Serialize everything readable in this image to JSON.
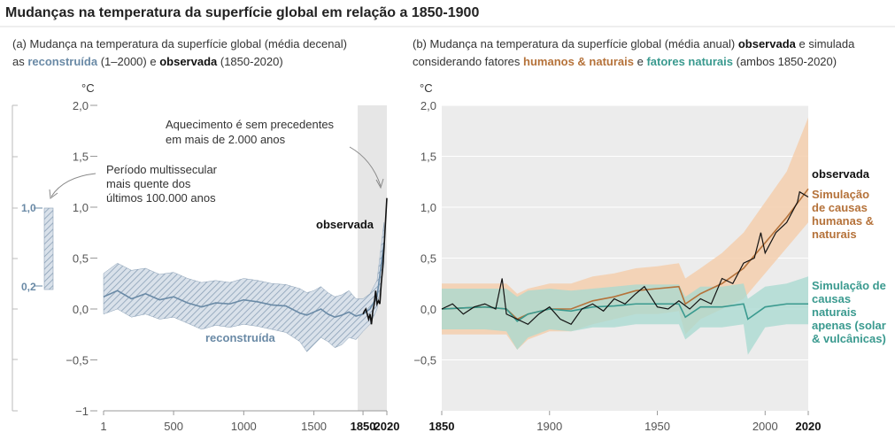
{
  "title": "Mudanças na temperatura da superfície global em relação a 1850-1900",
  "colors": {
    "reconstructed": "#6a8aa6",
    "observed": "#111111",
    "human_natural": "#b5723a",
    "human_natural_band": "#f4cfae",
    "natural": "#3a9a8f",
    "natural_band": "#a7d9d0",
    "panel_bg": "#ececec"
  },
  "panel_a": {
    "caption_line1": "(a) Mudança na temperatura da superfície global (média decenal)",
    "caption_pre": "as ",
    "caption_reconstructed": "reconstruída",
    "caption_mid": " (1–2000) e ",
    "caption_observed": "observada",
    "caption_post": " (1850-2020)",
    "unit": "°C",
    "annotation_warming": [
      "Aquecimento é sem precedentes",
      "em mais de 2.000 anos"
    ],
    "annotation_period": [
      "Período multissecular",
      "mais quente dos",
      "últimos 100.000 anos"
    ],
    "label_observed": "observada",
    "label_reconstructed": "reconstruída",
    "side_bar": {
      "top": "1,0",
      "bottom": "0,2"
    }
  },
  "panel_b": {
    "caption_line1_pre": "(b) Mudança na temperatura da superfície global (média anual) ",
    "caption_observed": "observada",
    "caption_line1_post": " e simulada",
    "caption_line2_pre": "considerando fatores ",
    "caption_human": "humanos & naturais",
    "caption_line2_mid": " e ",
    "caption_natural": "fatores naturais",
    "caption_line2_post": " (ambos 1850-2020)",
    "unit": "°C",
    "label_observed": "observada",
    "label_human": [
      "Simulação",
      "de causas",
      "humanas &",
      "naturais"
    ],
    "label_natural": [
      "Simulação de",
      "causas",
      "naturais",
      "apenas (solar",
      "& vulcânicas)"
    ]
  },
  "chart_data": [
    {
      "type": "line",
      "title": "(a) Mudança na temperatura da superfície global (média decenal)",
      "ylabel": "°C",
      "xlim": [
        1,
        2020
      ],
      "ylim": [
        -1,
        2
      ],
      "y_ticks": [
        "−1",
        "−0,5",
        "0,0",
        "0,5",
        "1,0",
        "1,5",
        "2,0"
      ],
      "x_ticks": [
        "1",
        "500",
        "1000",
        "1500",
        "1850",
        "2020"
      ],
      "shaded_region": [
        1850,
        2020
      ],
      "series": [
        {
          "name": "reconstruída",
          "x": [
            1,
            100,
            200,
            300,
            400,
            500,
            600,
            700,
            800,
            900,
            1000,
            1100,
            1200,
            1300,
            1400,
            1450,
            1500,
            1550,
            1600,
            1650,
            1700,
            1750,
            1800,
            1850,
            1900,
            1950,
            2000
          ],
          "values": [
            0.12,
            0.18,
            0.1,
            0.15,
            0.09,
            0.12,
            0.06,
            0.02,
            0.06,
            0.05,
            0.09,
            0.07,
            0.04,
            0.03,
            -0.04,
            -0.06,
            -0.03,
            0.0,
            -0.05,
            -0.08,
            -0.06,
            -0.03,
            -0.07,
            -0.05,
            0.0,
            0.12,
            0.65
          ],
          "lower": [
            -0.05,
            0.0,
            -0.08,
            -0.05,
            -0.1,
            -0.08,
            -0.14,
            -0.2,
            -0.16,
            -0.18,
            -0.15,
            -0.17,
            -0.2,
            -0.23,
            -0.32,
            -0.42,
            -0.35,
            -0.28,
            -0.32,
            -0.38,
            -0.35,
            -0.28,
            -0.3,
            -0.22,
            -0.15,
            0.0,
            0.45
          ],
          "upper": [
            0.35,
            0.45,
            0.38,
            0.4,
            0.34,
            0.36,
            0.3,
            0.26,
            0.28,
            0.26,
            0.3,
            0.28,
            0.25,
            0.24,
            0.2,
            0.16,
            0.18,
            0.22,
            0.16,
            0.12,
            0.14,
            0.18,
            0.1,
            0.1,
            0.15,
            0.28,
            0.85
          ]
        },
        {
          "name": "observada",
          "x": [
            1850,
            1860,
            1870,
            1880,
            1890,
            1900,
            1910,
            1920,
            1930,
            1940,
            1950,
            1960,
            1970,
            1980,
            1990,
            2000,
            2010,
            2020
          ],
          "values": [
            -0.05,
            -0.02,
            0.0,
            -0.05,
            -0.1,
            -0.05,
            -0.15,
            -0.02,
            0.05,
            0.18,
            0.05,
            0.08,
            0.05,
            0.25,
            0.4,
            0.6,
            0.85,
            1.09
          ]
        }
      ]
    },
    {
      "type": "line",
      "title": "(b) Mudança na temperatura da superfície global (média anual) observada e simulada",
      "ylabel": "°C",
      "xlim": [
        1850,
        2020
      ],
      "ylim": [
        -1,
        2
      ],
      "y_ticks": [
        "−0,5",
        "0,0",
        "0,5",
        "1,0",
        "1,5",
        "2,0"
      ],
      "x_ticks": [
        "1850",
        "1900",
        "1950",
        "2000",
        "2020"
      ],
      "series": [
        {
          "name": "observada",
          "x": [
            1850,
            1855,
            1860,
            1865,
            1870,
            1875,
            1878,
            1880,
            1885,
            1890,
            1895,
            1900,
            1905,
            1910,
            1915,
            1920,
            1925,
            1930,
            1935,
            1940,
            1944,
            1950,
            1955,
            1960,
            1965,
            1970,
            1975,
            1980,
            1985,
            1990,
            1995,
            1998,
            2000,
            2005,
            2010,
            2015,
            2016,
            2020
          ],
          "values": [
            0.0,
            0.05,
            -0.05,
            0.02,
            0.05,
            0.0,
            0.3,
            -0.05,
            -0.1,
            -0.15,
            -0.05,
            0.02,
            -0.1,
            -0.15,
            0.0,
            0.05,
            -0.02,
            0.1,
            0.05,
            0.15,
            0.22,
            0.02,
            0.0,
            0.08,
            0.0,
            0.1,
            0.05,
            0.3,
            0.25,
            0.45,
            0.5,
            0.75,
            0.55,
            0.75,
            0.85,
            1.05,
            1.15,
            1.1
          ]
        },
        {
          "name": "Simulação de causas humanas & naturais",
          "x": [
            1850,
            1870,
            1880,
            1885,
            1890,
            1900,
            1910,
            1920,
            1930,
            1940,
            1950,
            1960,
            1963,
            1970,
            1980,
            1990,
            2000,
            2010,
            2020
          ],
          "values": [
            0.0,
            0.02,
            0.0,
            -0.1,
            -0.05,
            0.0,
            0.0,
            0.08,
            0.12,
            0.18,
            0.2,
            0.22,
            0.05,
            0.15,
            0.25,
            0.4,
            0.65,
            0.9,
            1.18
          ],
          "lower": [
            -0.25,
            -0.25,
            -0.25,
            -0.4,
            -0.3,
            -0.22,
            -0.22,
            -0.15,
            -0.1,
            -0.05,
            -0.05,
            -0.02,
            -0.25,
            -0.1,
            0.0,
            0.1,
            0.35,
            0.6,
            0.85
          ],
          "upper": [
            0.25,
            0.25,
            0.25,
            0.15,
            0.2,
            0.25,
            0.25,
            0.32,
            0.35,
            0.4,
            0.42,
            0.45,
            0.3,
            0.4,
            0.55,
            0.75,
            1.05,
            1.35,
            1.88
          ]
        },
        {
          "name": "Simulação de causas naturais apenas (solar & vulcânicas)",
          "x": [
            1850,
            1870,
            1880,
            1885,
            1890,
            1900,
            1910,
            1920,
            1930,
            1940,
            1950,
            1960,
            1963,
            1970,
            1980,
            1990,
            1992,
            2000,
            2010,
            2020
          ],
          "values": [
            0.0,
            0.02,
            0.0,
            -0.12,
            -0.05,
            0.0,
            -0.02,
            0.02,
            0.03,
            0.05,
            0.05,
            0.05,
            -0.08,
            0.02,
            0.02,
            0.05,
            -0.1,
            0.02,
            0.05,
            0.05
          ],
          "lower": [
            -0.2,
            -0.2,
            -0.22,
            -0.4,
            -0.28,
            -0.2,
            -0.22,
            -0.18,
            -0.18,
            -0.15,
            -0.15,
            -0.15,
            -0.3,
            -0.18,
            -0.18,
            -0.15,
            -0.45,
            -0.18,
            -0.15,
            -0.15
          ],
          "upper": [
            0.2,
            0.2,
            0.2,
            0.12,
            0.18,
            0.2,
            0.18,
            0.2,
            0.22,
            0.24,
            0.24,
            0.24,
            0.12,
            0.22,
            0.22,
            0.25,
            0.1,
            0.22,
            0.25,
            0.32
          ]
        }
      ]
    }
  ]
}
